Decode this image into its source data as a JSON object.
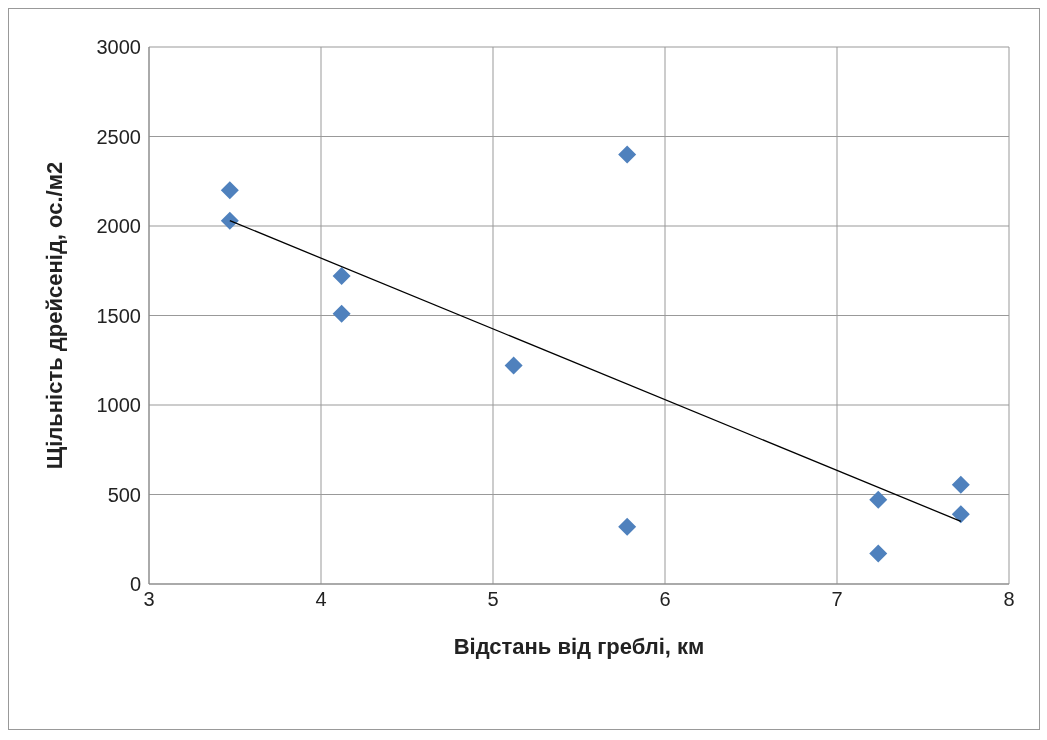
{
  "chart_data": {
    "type": "scatter",
    "xlabel": "Відстань від греблі, км",
    "ylabel": "Щільність дрейсенід, ос./м2",
    "xlim": [
      3,
      8
    ],
    "xticks": [
      3,
      4,
      5,
      6,
      7,
      8
    ],
    "ylim": [
      0,
      3000
    ],
    "yticks": [
      0,
      500,
      1000,
      1500,
      2000,
      2500,
      3000
    ],
    "grid": true,
    "series": [
      {
        "color": "#4f81bd",
        "marker": "diamond",
        "x": [
          3.47,
          3.47,
          4.12,
          4.12,
          5.12,
          5.78,
          5.78,
          7.24,
          7.24,
          7.72,
          7.72
        ],
        "values": [
          2200,
          2030,
          1720,
          1510,
          1220,
          2400,
          320,
          470,
          170,
          555,
          390
        ]
      },
      {
        "type": "line",
        "marker": "none",
        "color": "#000000",
        "x": [
          3.47,
          7.72
        ],
        "values": [
          2030,
          350
        ]
      }
    ]
  }
}
